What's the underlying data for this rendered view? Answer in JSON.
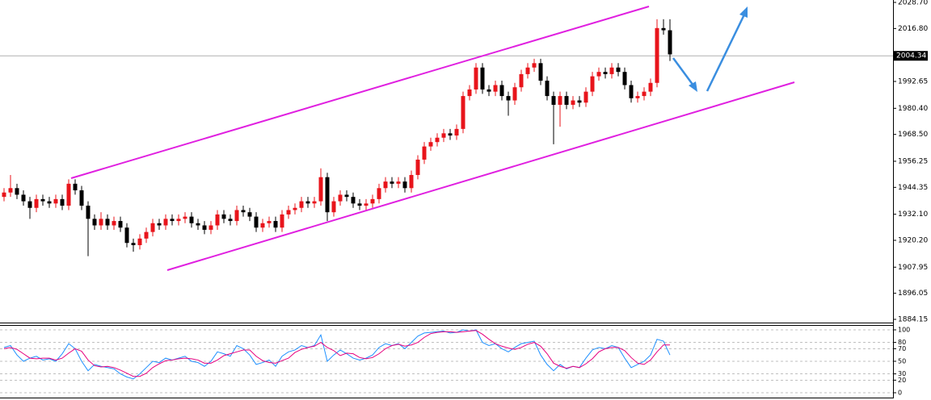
{
  "chart_data": [
    {
      "type": "candlestick",
      "open": [
        1940,
        1942,
        1944,
        1941,
        1938,
        1935,
        1939,
        1938,
        1937,
        1939,
        1936,
        1946,
        1943,
        1936,
        1930,
        1927,
        1930,
        1927,
        1929,
        1926,
        1919,
        1918,
        1921,
        1924,
        1928,
        1927,
        1930,
        1929,
        1930,
        1931,
        1928,
        1927,
        1925,
        1927,
        1932,
        1930,
        1929,
        1934,
        1933,
        1931,
        1926,
        1928,
        1929,
        1926,
        1932,
        1934,
        1935,
        1938,
        1937,
        1938,
        1949,
        1933,
        1938,
        1941,
        1940,
        1937,
        1936,
        1937,
        1939,
        1944,
        1947,
        1946,
        1947,
        1944,
        1950,
        1957,
        1963,
        1965,
        1967,
        1969,
        1968,
        1971,
        1986,
        1989,
        1999,
        1989,
        1988,
        1991,
        1986,
        1984,
        1990,
        1996,
        1999,
        2001,
        1993,
        1986,
        1982,
        1986,
        1982,
        1984,
        1983,
        1988,
        1995,
        1997,
        1996,
        1999,
        1997,
        1991,
        1985,
        1986,
        1988,
        1992,
        2017,
        2016
      ],
      "high": [
        1944,
        1950,
        1946,
        1943,
        1940,
        1941,
        1941,
        1940,
        1941,
        1941,
        1948,
        1948,
        1945,
        1938,
        1932,
        1933,
        1932,
        1931,
        1931,
        1928,
        1921,
        1923,
        1926,
        1930,
        1930,
        1932,
        1932,
        1932,
        1933,
        1933,
        1930,
        1929,
        1929,
        1934,
        1934,
        1932,
        1936,
        1936,
        1935,
        1933,
        1930,
        1931,
        1931,
        1934,
        1936,
        1937,
        1940,
        1940,
        1940,
        1953,
        1951,
        1940,
        1943,
        1943,
        1942,
        1939,
        1939,
        1941,
        1946,
        1949,
        1949,
        1949,
        1949,
        1952,
        1959,
        1965,
        1967,
        1969,
        1971,
        1971,
        1973,
        1988,
        1991,
        2001,
        2001,
        1991,
        1993,
        1993,
        1988,
        1992,
        1998,
        2001,
        2003,
        2003,
        1995,
        1988,
        1988,
        1988,
        1986,
        1986,
        1990,
        1997,
        1999,
        1999,
        2001,
        2001,
        1999,
        1993,
        1988,
        1990,
        1994,
        2021,
        2021,
        2021
      ],
      "low": [
        1938,
        1940,
        1939,
        1936,
        1930,
        1933,
        1936,
        1935,
        1935,
        1934,
        1934,
        1941,
        1934,
        1913,
        1925,
        1925,
        1925,
        1925,
        1924,
        1917,
        1915,
        1916,
        1919,
        1922,
        1925,
        1925,
        1927,
        1927,
        1928,
        1926,
        1925,
        1923,
        1923,
        1925,
        1928,
        1927,
        1927,
        1931,
        1929,
        1924,
        1924,
        1926,
        1924,
        1924,
        1930,
        1932,
        1933,
        1935,
        1935,
        1936,
        1929,
        1931,
        1936,
        1938,
        1935,
        1934,
        1934,
        1935,
        1937,
        1942,
        1944,
        1944,
        1942,
        1942,
        1948,
        1955,
        1961,
        1963,
        1965,
        1966,
        1966,
        1969,
        1984,
        1987,
        1987,
        1986,
        1986,
        1984,
        1977,
        1982,
        1988,
        1994,
        1997,
        1991,
        1984,
        1964,
        1972,
        1980,
        1980,
        1981,
        1981,
        1986,
        1993,
        1994,
        1994,
        1995,
        1989,
        1983,
        1983,
        1984,
        1986,
        1990,
        2014,
        2002
      ],
      "close": [
        1942,
        1944,
        1941,
        1938,
        1935,
        1939,
        1938,
        1937,
        1939,
        1936,
        1946,
        1943,
        1936,
        1930,
        1927,
        1930,
        1927,
        1929,
        1926,
        1919,
        1918,
        1921,
        1924,
        1928,
        1927,
        1930,
        1929,
        1930,
        1931,
        1928,
        1927,
        1925,
        1927,
        1932,
        1930,
        1929,
        1934,
        1933,
        1931,
        1926,
        1928,
        1929,
        1926,
        1932,
        1934,
        1935,
        1938,
        1937,
        1938,
        1949,
        1933,
        1938,
        1941,
        1940,
        1937,
        1936,
        1937,
        1939,
        1944,
        1947,
        1946,
        1947,
        1944,
        1950,
        1957,
        1963,
        1965,
        1967,
        1969,
        1968,
        1971,
        1986,
        1989,
        1999,
        1989,
        1988,
        1991,
        1986,
        1984,
        1990,
        1996,
        1999,
        2001,
        1993,
        1986,
        1982,
        1986,
        1982,
        1984,
        1983,
        1988,
        1995,
        1997,
        1996,
        1999,
        1997,
        1991,
        1985,
        1986,
        1988,
        1992,
        2017,
        2016,
        2005
      ],
      "up_color": "#e8141b",
      "down_color": "#000000",
      "ylim": [
        1884.15,
        2028.7
      ],
      "yticks": [
        {
          "value": 2028.7,
          "label": "2028.70"
        },
        {
          "value": 2016.8,
          "label": "2016.80"
        },
        {
          "value": 1992.65,
          "label": "1992.65"
        },
        {
          "value": 1980.4,
          "label": "1980.40"
        },
        {
          "value": 1968.5,
          "label": "1968.50"
        },
        {
          "value": 1956.25,
          "label": "1956.25"
        },
        {
          "value": 1944.35,
          "label": "1944.35"
        },
        {
          "value": 1932.1,
          "label": "1932.10"
        },
        {
          "value": 1920.2,
          "label": "1920.20"
        },
        {
          "value": 1907.95,
          "label": "1907.95"
        },
        {
          "value": 1896.05,
          "label": "1896.05"
        },
        {
          "value": 1884.15,
          "label": "1884.15"
        }
      ],
      "current_price": 2004.34
    },
    {
      "type": "line",
      "series": [
        {
          "color": "#1e90ff",
          "values": [
            72,
            75,
            60,
            50,
            55,
            58,
            52,
            54,
            50,
            62,
            78,
            70,
            50,
            35,
            45,
            42,
            40,
            38,
            30,
            25,
            22,
            30,
            40,
            50,
            48,
            55,
            52,
            55,
            58,
            50,
            48,
            42,
            50,
            65,
            62,
            58,
            75,
            70,
            60,
            45,
            48,
            52,
            42,
            58,
            65,
            68,
            75,
            72,
            75,
            92,
            50,
            60,
            68,
            62,
            55,
            52,
            55,
            60,
            72,
            78,
            75,
            78,
            70,
            80,
            90,
            95,
            96,
            97,
            98,
            95,
            96,
            100,
            98,
            100,
            80,
            75,
            78,
            70,
            65,
            72,
            78,
            80,
            82,
            60,
            45,
            35,
            45,
            38,
            42,
            40,
            55,
            68,
            72,
            70,
            75,
            72,
            55,
            40,
            45,
            50,
            60,
            85,
            82,
            60
          ]
        },
        {
          "color": "#e6007e",
          "values": [
            70,
            72,
            69,
            62,
            55,
            54,
            55,
            55,
            52,
            55,
            63,
            70,
            66,
            52,
            43,
            41,
            42,
            40,
            36,
            31,
            26,
            26,
            31,
            40,
            46,
            51,
            52,
            54,
            55,
            54,
            52,
            47,
            47,
            52,
            59,
            62,
            65,
            68,
            68,
            58,
            51,
            48,
            47,
            51,
            55,
            64,
            69,
            72,
            74,
            80,
            72,
            67,
            59,
            63,
            62,
            56,
            54,
            56,
            62,
            70,
            75,
            77,
            74,
            76,
            80,
            88,
            94,
            96,
            97,
            97,
            96,
            97,
            98,
            99,
            93,
            85,
            78,
            74,
            71,
            69,
            72,
            77,
            80,
            74,
            62,
            47,
            42,
            39,
            42,
            40,
            46,
            54,
            65,
            70,
            72,
            72,
            67,
            56,
            47,
            45,
            52,
            65,
            76,
            76
          ]
        }
      ],
      "ylim": [
        0,
        100
      ],
      "yticks": [
        100,
        80,
        70,
        50,
        30,
        20,
        0
      ]
    }
  ]
}
